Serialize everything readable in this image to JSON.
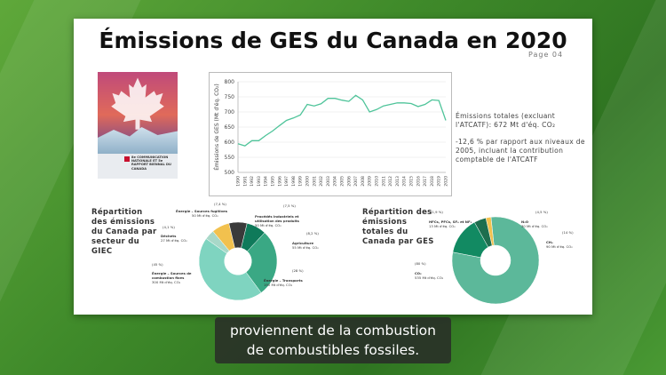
{
  "slide": {
    "title": "Émissions de GES du Canada en 2020",
    "page": "Page 04"
  },
  "cover": {
    "text": "8e COMMUNICATION NATIONALE ET 5e RAPPORT BIENNAL DU CANADA"
  },
  "description": {
    "line1": "Émissions totales (excluant l'ATCATF): 672 Mt d'éq. CO₂",
    "line2": "-12,6 % par rapport aux niveaux de 2005, incluant la contribution comptable de l'ATCATF"
  },
  "chart_data": [
    {
      "type": "line",
      "ylabel": "Émissions de GES (Mt d'éq. CO₂)",
      "ylim": [
        500,
        800
      ],
      "yticks": [
        500,
        550,
        600,
        650,
        700,
        750,
        800
      ],
      "x": [
        "1990",
        "1991",
        "1992",
        "1993",
        "1994",
        "1995",
        "1996",
        "1997",
        "1998",
        "1999",
        "2000",
        "2001",
        "2002",
        "2003",
        "2004",
        "2005",
        "2006",
        "2007",
        "2008",
        "2009",
        "2010",
        "2011",
        "2012",
        "2013",
        "2014",
        "2015",
        "2016",
        "2017",
        "2018",
        "2019",
        "2020"
      ],
      "values": [
        595,
        588,
        605,
        605,
        622,
        637,
        655,
        672,
        680,
        690,
        725,
        720,
        727,
        745,
        745,
        739,
        735,
        755,
        740,
        700,
        708,
        720,
        725,
        730,
        730,
        728,
        718,
        725,
        740,
        738,
        672
      ]
    },
    {
      "type": "pie",
      "title": "Répartition des émissions du Canada par secteur du GIEC",
      "slices": [
        {
          "name": "Énergie – Sources fugitives",
          "value_text": "50 Mt d'éq. CO₂",
          "percent": 7.4,
          "color": "#f2c14e"
        },
        {
          "name": "Procédés industriels et utilisation des produits",
          "value_text": "50 Mt d'éq. CO₂",
          "percent": 7.5,
          "color": "#3a3a3a"
        },
        {
          "name": "Agriculture",
          "value_text": "55 Mt d'éq. CO₂",
          "percent": 8.2,
          "color": "#0f7a5a"
        },
        {
          "name": "Énergie – Transports",
          "value_text": "190 Mt d'éq. CO₂",
          "percent": 28,
          "color": "#3aa884"
        },
        {
          "name": "Énergie – Sources de combustion fixes",
          "value_text": "300 Mt d'éq. CO₂",
          "percent": 45,
          "color": "#7fd4c0"
        },
        {
          "name": "Déchets",
          "value_text": "27 Mt d'éq. CO₂",
          "percent": 4.1,
          "color": "#a8d8c8"
        }
      ],
      "pct_labels": [
        "(7,4 %)",
        "(7,5 %)",
        "(8,2 %)",
        "(28 %)",
        "(45 %)",
        "(4,1 %)"
      ]
    },
    {
      "type": "pie",
      "title": "Répartition des émissions totales du Canada par GES",
      "slices": [
        {
          "name": "CO₂",
          "value_text": "535 Mt d'éq. CO₂",
          "percent": 80,
          "color": "#5cb89a"
        },
        {
          "name": "CH₄",
          "value_text": "90 Mt d'éq. CO₂",
          "percent": 14,
          "color": "#128a62"
        },
        {
          "name": "N₂O",
          "value_text": "30 Mt d'éq. CO₂",
          "percent": 4.5,
          "color": "#1d6e4e"
        },
        {
          "name": "HFCs, PFCs, SF₆ et NF₃",
          "value_text": "13 Mt d'éq. CO₂",
          "percent": 1.9,
          "color": "#f2c14e"
        }
      ],
      "pct_labels": [
        "(80 %)",
        "(14 %)",
        "(4,5 %)",
        "(1,9 %)"
      ]
    }
  ],
  "subtitle": {
    "line1": "proviennent de la combustion",
    "line2": "de combustibles fossiles."
  }
}
